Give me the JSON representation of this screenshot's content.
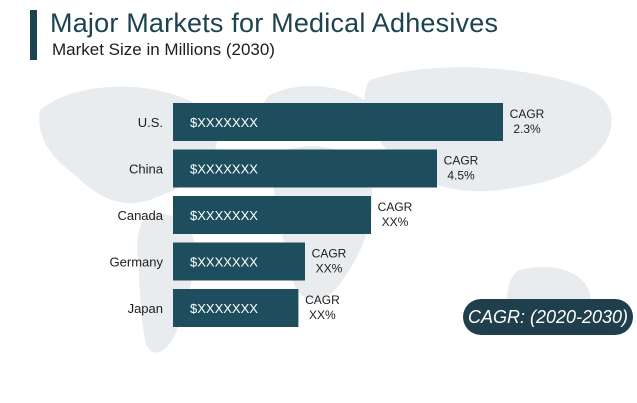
{
  "title": "Major Markets for Medical Adhesives",
  "subtitle": "Market Size in Millions (2030)",
  "cagr_badge": "CAGR: (2020-2030)",
  "colors": {
    "bar": "#1e4e5d",
    "title": "#1d4250",
    "badge": "#1e3f4b",
    "map": "#e9ecef"
  },
  "chart_data": {
    "type": "bar",
    "orientation": "horizontal",
    "categories": [
      "U.S.",
      "China",
      "Canada",
      "Germany",
      "Japan"
    ],
    "values": [
      5,
      4,
      3,
      2,
      1.9
    ],
    "bar_labels": [
      "$XXXXXXX",
      "$XXXXXXX",
      "$XXXXXXX",
      "$XXXXXXX",
      "$XXXXXXX"
    ],
    "cagr_label": "CAGR",
    "cagr_values": [
      "2.3%",
      "4.5%",
      "XX%",
      "XX%",
      "XX%"
    ],
    "title": "Major Markets for Medical Adhesives",
    "subtitle": "Market Size in Millions (2030)",
    "xlim": [
      0,
      5
    ],
    "grid": false,
    "legend": "none"
  }
}
